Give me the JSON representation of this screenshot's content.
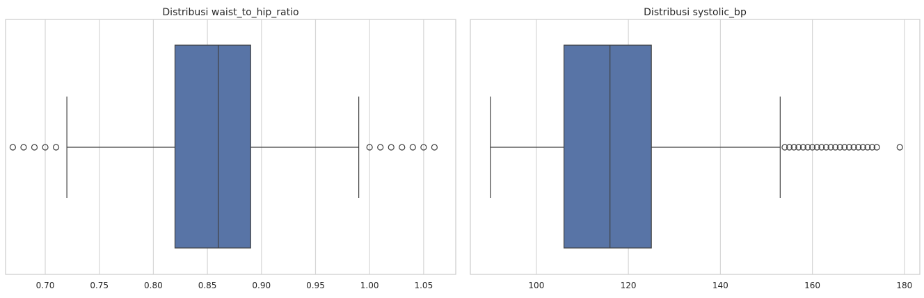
{
  "chart_data": [
    {
      "type": "boxplot",
      "title": "Distribusi waist_to_hip_ratio",
      "xlabel": "",
      "ylabel": "",
      "xlim": [
        0.6633,
        1.0797
      ],
      "ticks": [
        0.7,
        0.75,
        0.8,
        0.85,
        0.9,
        0.95,
        1.0,
        1.05
      ],
      "tick_labels": [
        "0.70",
        "0.75",
        "0.80",
        "0.85",
        "0.90",
        "0.95",
        "1.00",
        "1.05"
      ],
      "grid": true,
      "box": {
        "whisker_low": 0.72,
        "q1": 0.82,
        "median": 0.86,
        "q3": 0.89,
        "whisker_high": 0.99,
        "color": "#5874a6"
      },
      "outliers": [
        0.67,
        0.68,
        0.69,
        0.7,
        0.71,
        1.0,
        1.01,
        1.02,
        1.03,
        1.04,
        1.05,
        1.06
      ]
    },
    {
      "type": "boxplot",
      "title": "Distribusi systolic_bp",
      "xlabel": "",
      "ylabel": "",
      "xlim": [
        85.65,
        183.35
      ],
      "ticks": [
        100,
        120,
        140,
        160,
        180
      ],
      "tick_labels": [
        "100",
        "120",
        "140",
        "160",
        "180"
      ],
      "grid": true,
      "box": {
        "whisker_low": 90,
        "q1": 106,
        "median": 116,
        "q3": 125,
        "whisker_high": 153,
        "color": "#5874a6"
      },
      "outliers": [
        154,
        155,
        156,
        157,
        158,
        159,
        160,
        161,
        162,
        163,
        164,
        165,
        166,
        167,
        168,
        169,
        170,
        171,
        172,
        173,
        174,
        179
      ]
    }
  ]
}
